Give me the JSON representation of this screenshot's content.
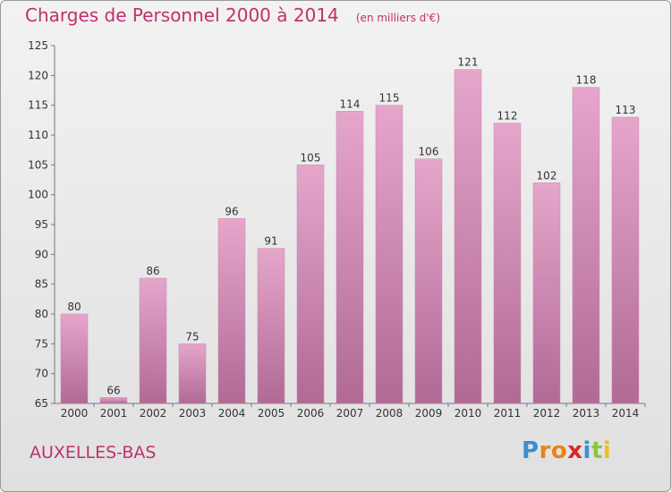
{
  "header": {
    "title": "Charges de Personnel 2000 à 2014",
    "unit": "(en milliers d'€)"
  },
  "commune": "AUXELLES-BAS",
  "logo": {
    "letters": [
      "P",
      "r",
      "o",
      "x",
      "i",
      "t",
      "i"
    ],
    "colors": [
      "#3a8fd4",
      "#e8831a",
      "#e8831a",
      "#d42a2a",
      "#3a8fd4",
      "#8cc63f",
      "#e8c21a"
    ]
  },
  "colors": {
    "accent": "#c0306e",
    "bar_top": "#e6a6cc",
    "bar_bottom": "#b06a94"
  },
  "chart_data": {
    "type": "bar",
    "title": "Charges de Personnel 2000 à 2014",
    "subtitle": "(en milliers d'€)",
    "categories": [
      "2000",
      "2001",
      "2002",
      "2003",
      "2004",
      "2005",
      "2006",
      "2007",
      "2008",
      "2009",
      "2010",
      "2011",
      "2012",
      "2013",
      "2014"
    ],
    "values": [
      80,
      66,
      86,
      75,
      96,
      91,
      105,
      114,
      115,
      106,
      121,
      112,
      102,
      118,
      113
    ],
    "yticks": [
      65,
      70,
      75,
      80,
      85,
      90,
      95,
      100,
      105,
      110,
      115,
      120,
      125
    ],
    "ylim": [
      65,
      125
    ],
    "grid": false,
    "xlabel": "",
    "ylabel": ""
  }
}
